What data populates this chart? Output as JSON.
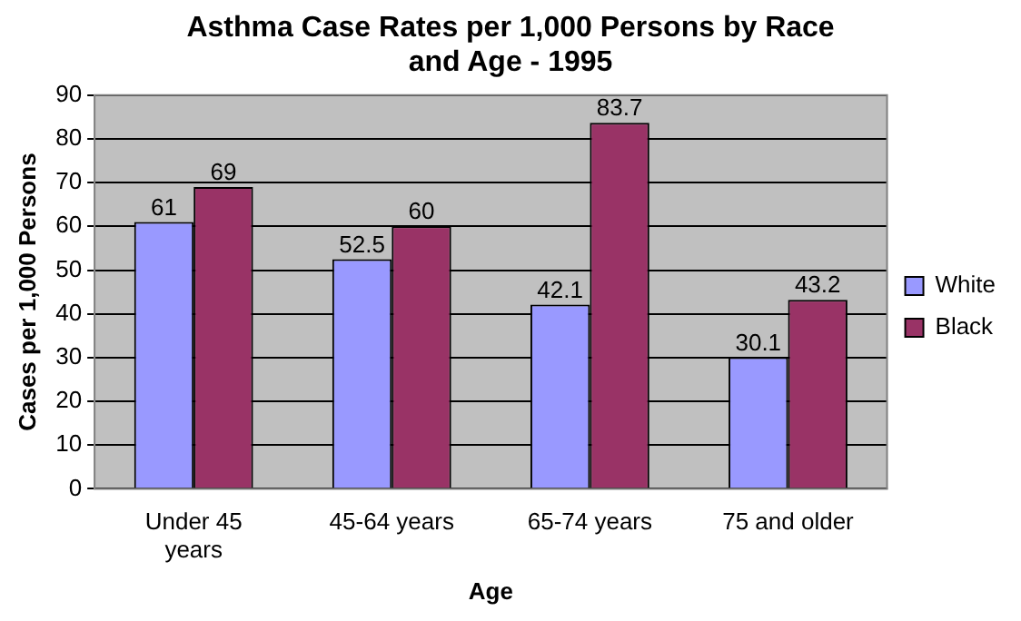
{
  "chart_data": {
    "type": "bar",
    "title": "Asthma Case Rates per 1,000 Persons by Race and Age - 1995",
    "xlabel": "Age",
    "ylabel": "Cases per 1,000 Persons",
    "categories": [
      "Under 45 years",
      "45-64 years",
      "65-74 years",
      "75 and older"
    ],
    "series": [
      {
        "name": "White",
        "color": "#9999ff",
        "values": [
          61,
          52.5,
          42.1,
          30.1
        ]
      },
      {
        "name": "Black",
        "color": "#993366",
        "values": [
          69,
          60,
          83.7,
          43.2
        ]
      }
    ],
    "ylim": [
      0,
      90
    ],
    "yticks": [
      0,
      10,
      20,
      30,
      40,
      50,
      60,
      70,
      80,
      90
    ],
    "grid": "y",
    "legend": "right",
    "data_labels": true
  }
}
